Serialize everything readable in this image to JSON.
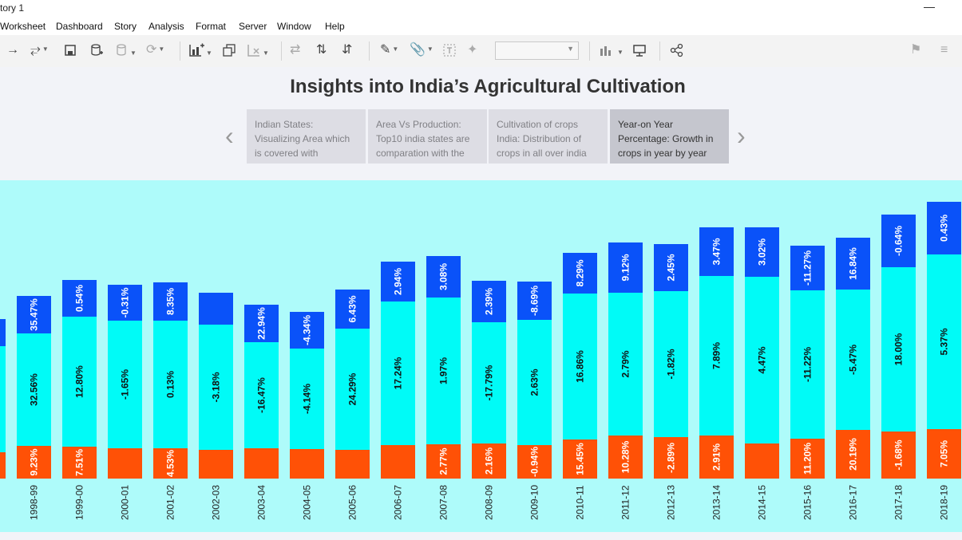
{
  "window": {
    "title": "tory 1",
    "minimize_glyph": "—"
  },
  "menu": [
    "Worksheet",
    "Dashboard",
    "Story",
    "Analysis",
    "Format",
    "Server",
    "Window",
    "Help"
  ],
  "toolbar": {
    "icons": [
      "redo-arrow",
      "replay",
      "save",
      "new-data-source",
      "data-source-options",
      "refresh",
      "new-worksheet",
      "duplicate-sheet",
      "clear-sheet",
      "swap-rows-columns",
      "sort-ascending",
      "sort-descending",
      "highlight",
      "attach",
      "labels",
      "pin",
      "show-me",
      "presentation-mode",
      "share"
    ],
    "dropdown_value": ""
  },
  "story": {
    "title": "Insights into India’s Agricultural Cultivation",
    "points": [
      "Indian States: Visualizing Area which is covered with",
      "Area Vs Production: Top10 india states are comparation  with the",
      "Cultivation of crops India: Distribution of crops in all over india",
      "Year-on Year Percentage: Growth in crops in year by year"
    ],
    "active_point": 3
  },
  "colors": {
    "top": "#0a52f9",
    "middle": "#00fbf7",
    "bottom": "#ff5106",
    "background": "#aefbfa"
  },
  "chart_data": {
    "type": "bar",
    "stacked": true,
    "categories": [
      "1998-99",
      "1999-00",
      "2000-01",
      "2001-02",
      "2002-03",
      "2003-04",
      "2004-05",
      "2005-06",
      "2006-07",
      "2007-08",
      "2008-09",
      "2009-10",
      "2010-11",
      "2011-12",
      "2012-13",
      "2013-14",
      "2014-15",
      "2015-16",
      "2016-17",
      "2017-18",
      "2018-19"
    ],
    "partial_first_bar": {
      "bottom": 33,
      "middle": 133,
      "top": 34
    },
    "series": [
      {
        "segment_values": [
          41,
          40,
          38,
          38,
          36,
          38,
          37,
          36,
          42,
          43,
          44,
          42,
          49,
          54,
          52,
          54,
          44,
          50,
          61,
          59,
          62
        ],
        "labels": [
          "9.23%",
          "7.51%",
          "",
          "4.53%",
          "",
          "",
          "",
          "",
          "",
          "2.77%",
          "2.16%",
          "-0.94%",
          "15.45%",
          "10.28%",
          "-2.89%",
          "2.91%",
          "",
          "11.20%",
          "20.19%",
          "-1.68%",
          "7.05%"
        ]
      },
      {
        "segment_values": [
          141,
          163,
          160,
          160,
          157,
          133,
          126,
          152,
          180,
          184,
          152,
          157,
          183,
          179,
          183,
          200,
          209,
          186,
          176,
          206,
          219
        ],
        "labels": [
          "32.56%",
          "12.80%",
          "-1.65%",
          "0.13%",
          "-3.18%",
          "-16.47%",
          "-4.14%",
          "24.29%",
          "17.24%",
          "1.97%",
          "-17.79%",
          "2.63%",
          "16.86%",
          "2.79%",
          "-1.82%",
          "7.89%",
          "4.47%",
          "-11.22%",
          "-5.47%",
          "18.00%",
          "5.37%"
        ]
      },
      {
        "segment_values": [
          47,
          46,
          45,
          48,
          40,
          47,
          46,
          49,
          50,
          52,
          52,
          48,
          51,
          63,
          59,
          61,
          62,
          56,
          65,
          66,
          66
        ],
        "labels": [
          "35.47%",
          "0.54%",
          "-0.31%",
          "8.35%",
          "",
          "22.94%",
          "-4.34%",
          "6.43%",
          "2.94%",
          "3.08%",
          "2.39%",
          "-8.69%",
          "8.29%",
          "9.12%",
          "2.45%",
          "3.47%",
          "3.02%",
          "-11.27%",
          "16.84%",
          "-0.64%",
          "0.43%"
        ]
      }
    ]
  }
}
